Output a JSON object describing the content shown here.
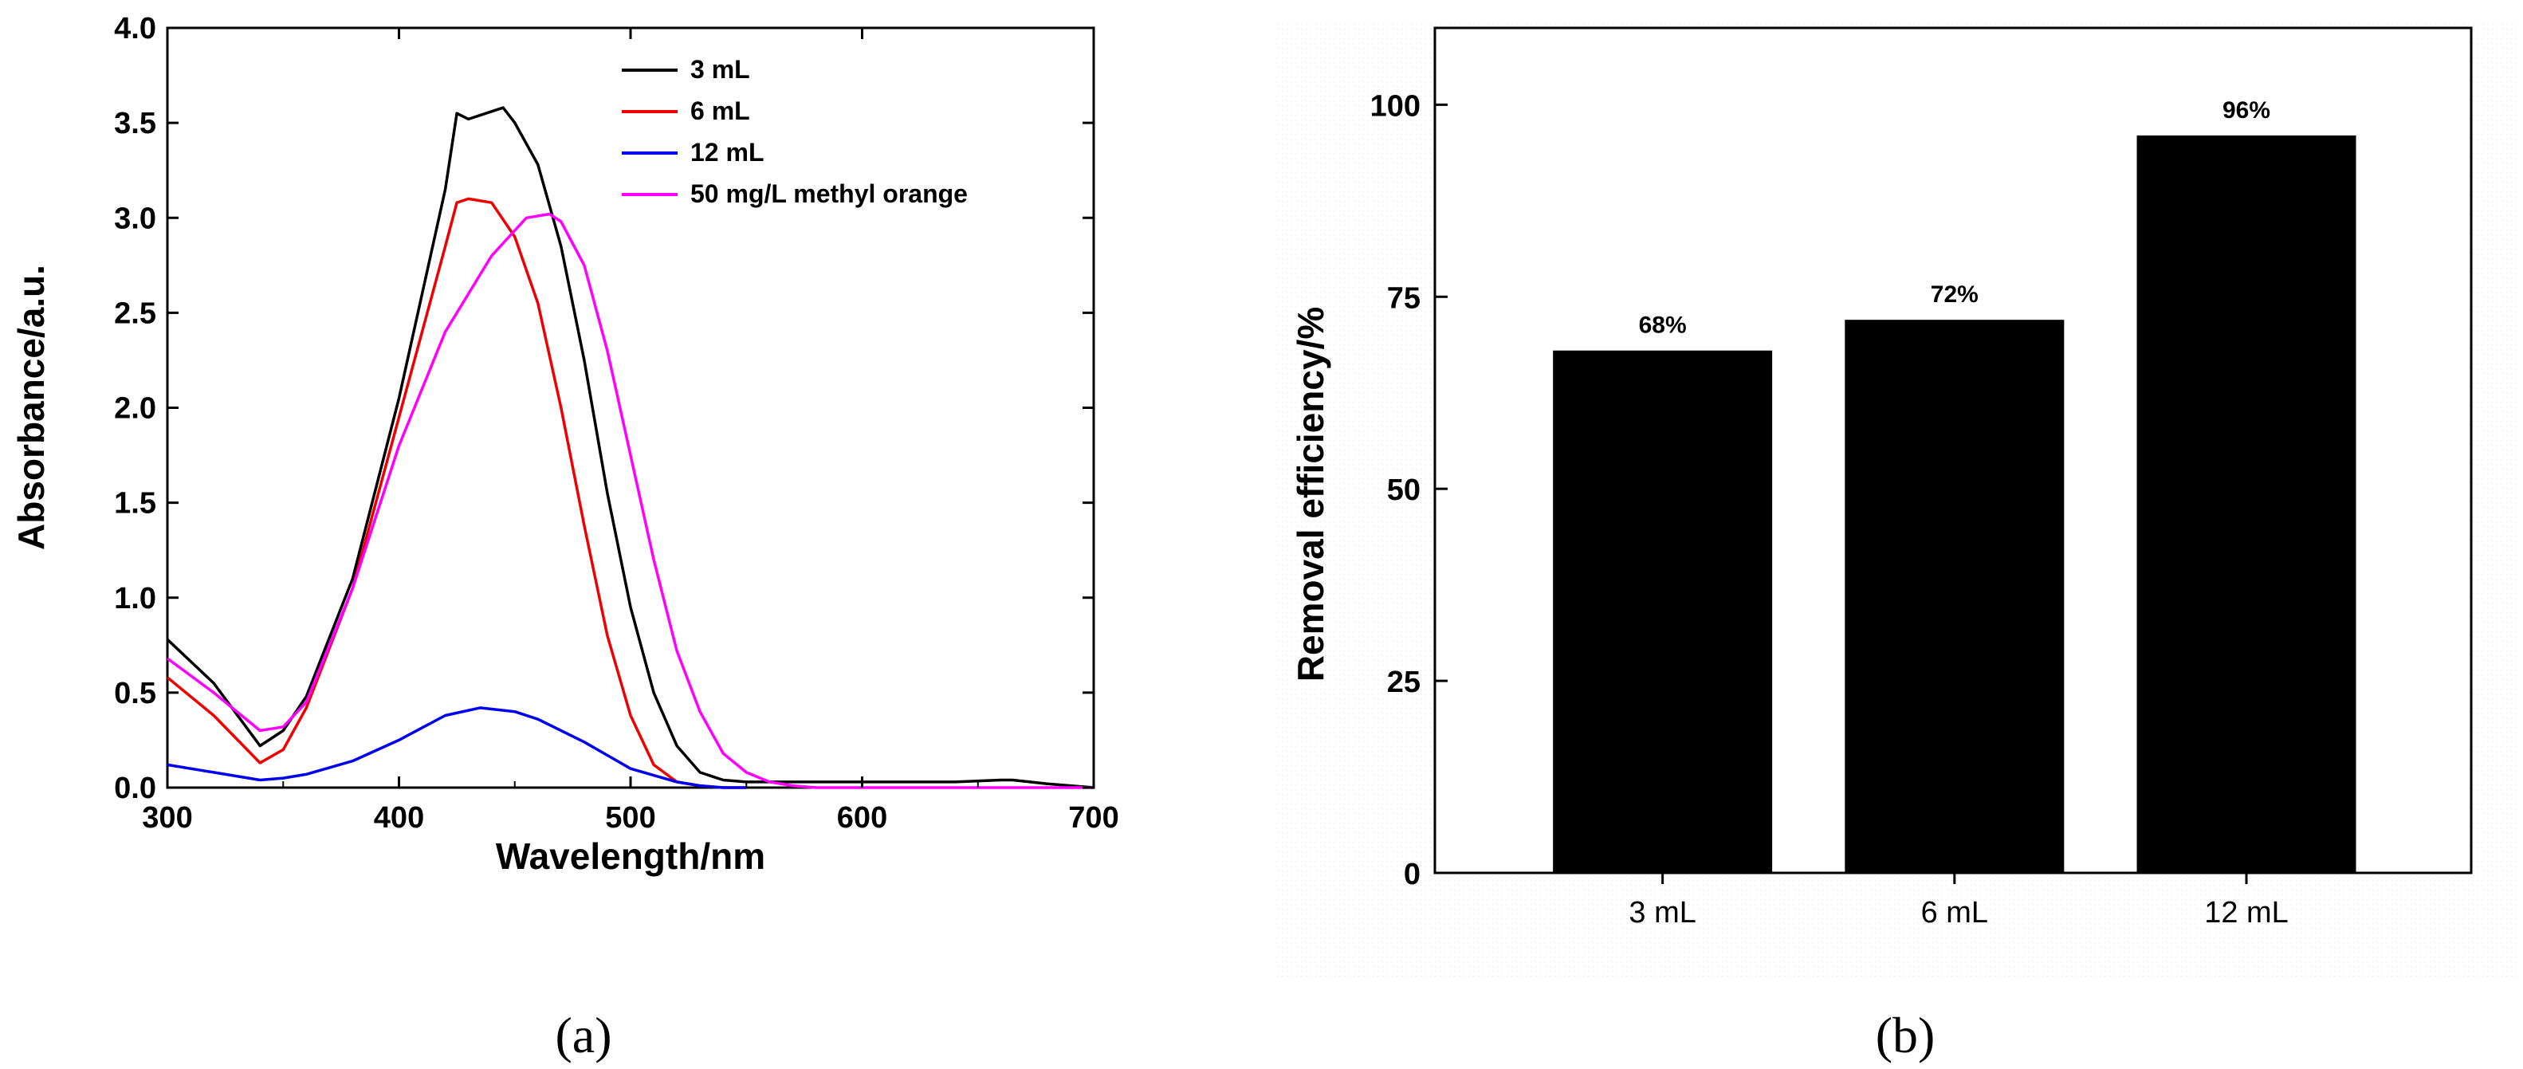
{
  "chart_data": [
    {
      "panel": "(a)",
      "type": "line",
      "xlabel": "Wavelength/nm",
      "ylabel": "Absorbance/a.u.",
      "xlim": [
        300,
        700
      ],
      "ylim": [
        0,
        4.0
      ],
      "xticks": [
        "300",
        "400",
        "500",
        "600",
        "700"
      ],
      "yticks": [
        "0.0",
        "0.5",
        "1.0",
        "1.5",
        "2.0",
        "2.5",
        "3.0",
        "3.5",
        "4.0"
      ],
      "legend_position": "top-right",
      "series": [
        {
          "name": "3 mL",
          "color": "#000000",
          "x": [
            300,
            320,
            340,
            350,
            360,
            380,
            400,
            420,
            425,
            430,
            440,
            445,
            450,
            460,
            470,
            480,
            490,
            500,
            510,
            520,
            530,
            540,
            550,
            560,
            580,
            600,
            620,
            640,
            660,
            665,
            680,
            700
          ],
          "y": [
            0.78,
            0.55,
            0.22,
            0.3,
            0.48,
            1.1,
            2.05,
            3.15,
            3.55,
            3.52,
            3.56,
            3.58,
            3.5,
            3.28,
            2.85,
            2.25,
            1.55,
            0.95,
            0.5,
            0.22,
            0.08,
            0.04,
            0.03,
            0.03,
            0.03,
            0.03,
            0.03,
            0.03,
            0.04,
            0.04,
            0.02,
            0.0
          ]
        },
        {
          "name": "6 mL",
          "color": "#ee0000",
          "x": [
            300,
            320,
            340,
            350,
            360,
            380,
            400,
            420,
            425,
            430,
            440,
            450,
            460,
            470,
            480,
            490,
            500,
            510,
            520,
            530,
            540,
            550
          ],
          "y": [
            0.58,
            0.38,
            0.13,
            0.2,
            0.42,
            1.05,
            1.95,
            2.85,
            3.08,
            3.1,
            3.08,
            2.9,
            2.55,
            2.0,
            1.38,
            0.8,
            0.38,
            0.12,
            0.03,
            0.01,
            0.0,
            0.0
          ]
        },
        {
          "name": "12 mL",
          "color": "#0000ee",
          "x": [
            300,
            320,
            340,
            350,
            360,
            380,
            400,
            420,
            435,
            450,
            460,
            480,
            500,
            520,
            530,
            540,
            550
          ],
          "y": [
            0.12,
            0.08,
            0.04,
            0.05,
            0.07,
            0.14,
            0.25,
            0.38,
            0.42,
            0.4,
            0.36,
            0.24,
            0.1,
            0.03,
            0.01,
            0.0,
            0.0
          ]
        },
        {
          "name": "50 mg/L methyl orange",
          "color": "#ff00ff",
          "x": [
            300,
            320,
            340,
            350,
            360,
            380,
            400,
            420,
            440,
            455,
            465,
            470,
            480,
            490,
            500,
            510,
            520,
            530,
            540,
            550,
            560,
            570,
            580,
            600,
            700
          ],
          "y": [
            0.68,
            0.5,
            0.3,
            0.32,
            0.45,
            1.05,
            1.8,
            2.4,
            2.8,
            3.0,
            3.02,
            2.98,
            2.75,
            2.3,
            1.75,
            1.2,
            0.72,
            0.4,
            0.18,
            0.08,
            0.03,
            0.01,
            0.0,
            0.0,
            0.0
          ]
        }
      ]
    },
    {
      "panel": "(b)",
      "type": "bar",
      "xlabel": "",
      "ylabel": "Removal efficiency/%",
      "ylim": [
        0,
        110
      ],
      "yticks": [
        "0",
        "25",
        "50",
        "75",
        "100"
      ],
      "categories": [
        "3 mL",
        "6 mL",
        "12 mL"
      ],
      "values": [
        68,
        72,
        96
      ],
      "value_labels": [
        "68%",
        "72%",
        "96%"
      ],
      "bar_color": "#000000"
    }
  ]
}
